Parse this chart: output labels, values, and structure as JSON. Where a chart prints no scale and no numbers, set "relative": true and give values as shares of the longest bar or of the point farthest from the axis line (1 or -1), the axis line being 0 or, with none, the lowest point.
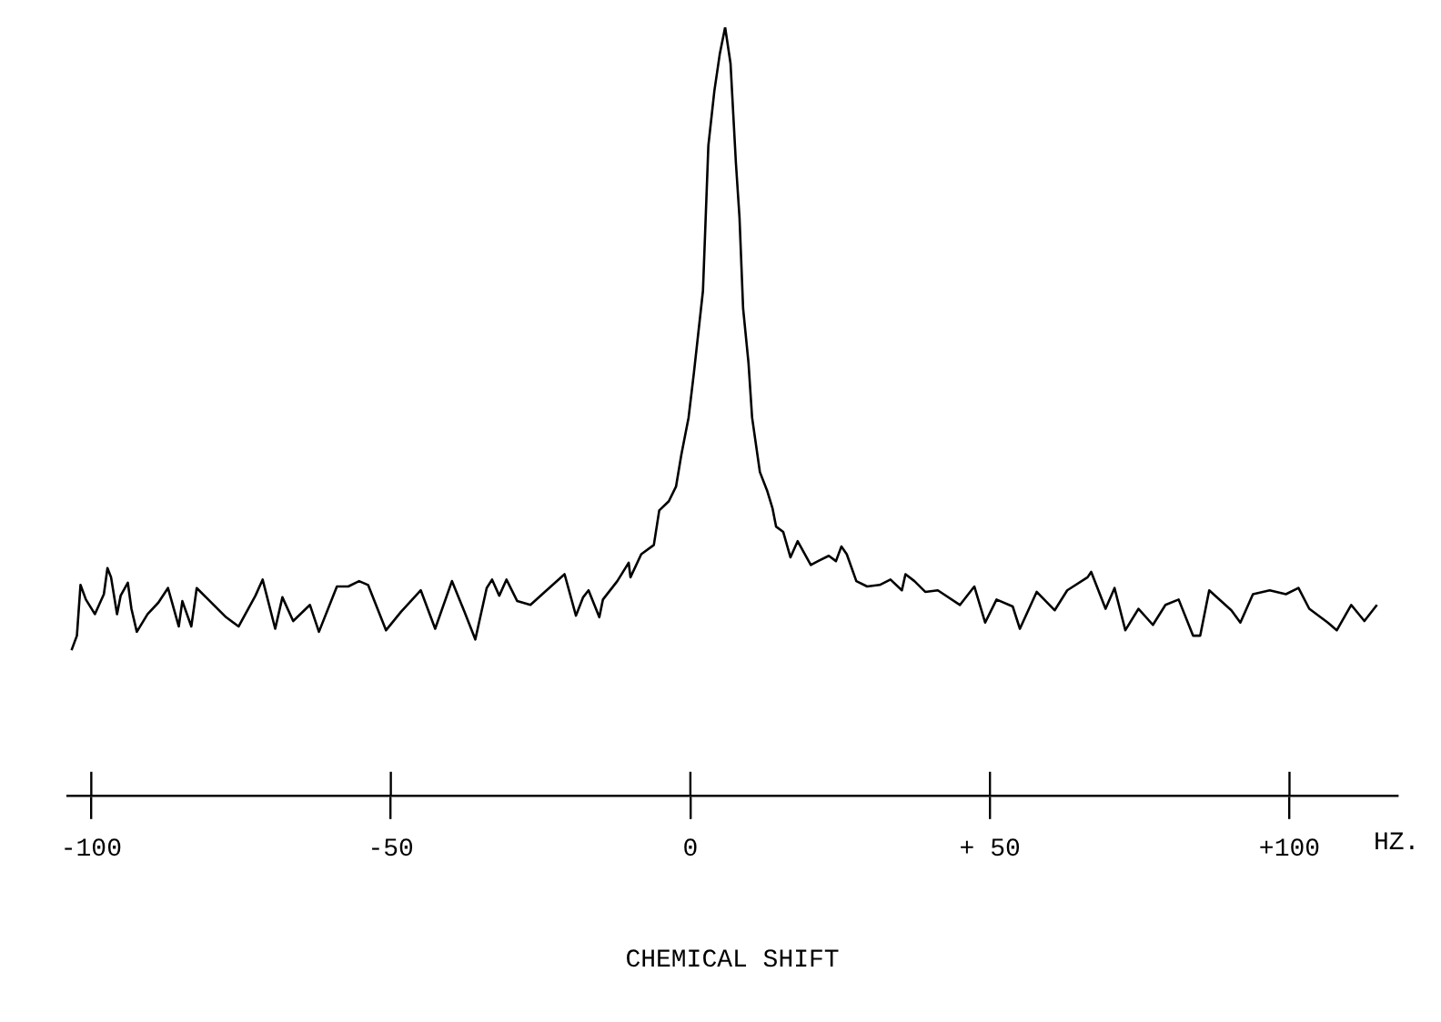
{
  "chart_data": {
    "type": "line",
    "xlabel": "CHEMICAL SHIFT",
    "annotations": [
      "HZ."
    ],
    "relative": true,
    "grid": false,
    "marker": "none",
    "xlim": [
      -104,
      118
    ],
    "xticks": [
      -100,
      -50,
      0,
      {
        "value": 50,
        "label": "+ 50"
      },
      {
        "value": 100,
        "label": "+100"
      }
    ],
    "series": [
      {
        "color": "#000000",
        "x": [
          -103.3,
          -102.4,
          -101.8,
          -100.9,
          -99.4,
          -97.9,
          -97.3,
          -96.7,
          -95.7,
          -95.1,
          -93.9,
          -93.3,
          -92.4,
          -90.6,
          -88.8,
          -87.2,
          -85.4,
          -84.8,
          -83.3,
          -82.4,
          -80.2,
          -77.5,
          -75.4,
          -72.6,
          -71.4,
          -69.3,
          -68.1,
          -66.3,
          -63.5,
          -62.0,
          -59.0,
          -57.1,
          -55.3,
          -53.8,
          -50.8,
          -48.3,
          -45.0,
          -42.6,
          -39.8,
          -37.7,
          -35.9,
          -34.0,
          -33.1,
          -31.9,
          -30.7,
          -28.9,
          -26.7,
          -24.3,
          -21.0,
          -19.1,
          -17.9,
          -17.0,
          -15.2,
          -14.6,
          -12.2,
          -10.3,
          -10.0,
          -8.2,
          -6.1,
          -5.2,
          -3.6,
          -2.4,
          -1.5,
          -0.3,
          0.6,
          2.1,
          3.0,
          4.0,
          4.9,
          5.8,
          6.7,
          7.6,
          8.2,
          8.8,
          9.7,
          10.3,
          11.6,
          12.8,
          13.7,
          14.3,
          15.5,
          16.7,
          17.9,
          20.1,
          21.3,
          23.1,
          24.3,
          25.2,
          26.1,
          27.7,
          29.5,
          31.6,
          33.4,
          35.3,
          35.9,
          37.4,
          39.2,
          41.3,
          45.0,
          47.4,
          49.2,
          51.1,
          53.8,
          55.0,
          57.8,
          60.8,
          62.9,
          66.3,
          66.9,
          69.3,
          70.8,
          72.6,
          74.8,
          77.2,
          79.3,
          81.5,
          83.9,
          85.1,
          86.6,
          90.3,
          91.8,
          93.9,
          96.7,
          99.4,
          101.5,
          103.3,
          106.4,
          107.9,
          110.3,
          112.5,
          114.6
        ],
        "values": [
          0.189,
          0.208,
          0.274,
          0.255,
          0.236,
          0.262,
          0.296,
          0.284,
          0.236,
          0.26,
          0.277,
          0.243,
          0.213,
          0.236,
          0.251,
          0.27,
          0.22,
          0.253,
          0.22,
          0.27,
          0.253,
          0.232,
          0.22,
          0.26,
          0.281,
          0.217,
          0.258,
          0.227,
          0.248,
          0.213,
          0.272,
          0.272,
          0.279,
          0.274,
          0.215,
          0.239,
          0.267,
          0.217,
          0.279,
          0.239,
          0.203,
          0.27,
          0.281,
          0.26,
          0.281,
          0.253,
          0.248,
          0.265,
          0.288,
          0.234,
          0.258,
          0.267,
          0.232,
          0.255,
          0.279,
          0.303,
          0.284,
          0.314,
          0.326,
          0.371,
          0.383,
          0.402,
          0.444,
          0.492,
          0.551,
          0.657,
          0.846,
          0.917,
          0.965,
          1,
          0.953,
          0.823,
          0.752,
          0.634,
          0.563,
          0.492,
          0.421,
          0.397,
          0.374,
          0.35,
          0.343,
          0.31,
          0.331,
          0.3,
          0.305,
          0.312,
          0.305,
          0.324,
          0.314,
          0.279,
          0.272,
          0.274,
          0.281,
          0.267,
          0.288,
          0.279,
          0.265,
          0.267,
          0.248,
          0.272,
          0.225,
          0.255,
          0.246,
          0.217,
          0.265,
          0.241,
          0.267,
          0.284,
          0.291,
          0.243,
          0.27,
          0.215,
          0.243,
          0.222,
          0.248,
          0.255,
          0.208,
          0.208,
          0.267,
          0.241,
          0.225,
          0.262,
          0.267,
          0.262,
          0.27,
          0.243,
          0.225,
          0.215,
          0.248,
          0.227,
          0.248
        ]
      }
    ]
  }
}
